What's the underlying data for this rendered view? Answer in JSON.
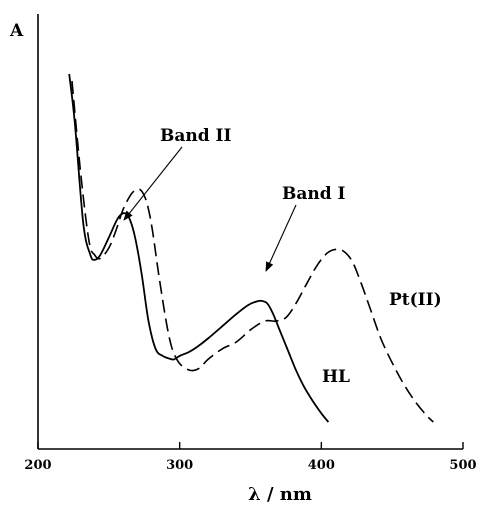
{
  "chart_data": {
    "type": "line",
    "ylabel": "A",
    "xlabel": "λ / nm",
    "xlim": [
      200,
      500
    ],
    "ylim": [
      0,
      1
    ],
    "x_ticks": [
      200,
      300,
      400,
      500
    ],
    "y_axis_numbered": false,
    "grid": false,
    "legend": "none (curves labeled directly)",
    "series": [
      {
        "name": "HL",
        "style": "solid",
        "x": [
          222,
          226,
          232,
          237,
          240,
          244,
          250,
          255,
          258,
          261,
          264,
          268,
          273,
          278,
          283,
          288,
          293,
          296,
          300,
          306,
          312,
          320,
          330,
          340,
          348,
          354,
          358,
          362,
          366,
          370,
          376,
          382,
          388,
          394,
          400,
          405
        ],
        "y": [
          1.0,
          0.86,
          0.57,
          0.48,
          0.466,
          0.48,
          0.53,
          0.575,
          0.594,
          0.6,
          0.59,
          0.54,
          0.43,
          0.29,
          0.21,
          0.19,
          0.182,
          0.18,
          0.19,
          0.2,
          0.215,
          0.24,
          0.275,
          0.31,
          0.335,
          0.346,
          0.348,
          0.34,
          0.31,
          0.27,
          0.21,
          0.15,
          0.1,
          0.06,
          0.025,
          0.0
        ]
      },
      {
        "name": "Pt(II)",
        "style": "dashed",
        "x": [
          224,
          230,
          236,
          240,
          244,
          250,
          255,
          260,
          265,
          268,
          272,
          276,
          280,
          285,
          290,
          294,
          298,
          302,
          308,
          314,
          320,
          330,
          340,
          350,
          360,
          368,
          375,
          382,
          390,
          397,
          404,
          410,
          416,
          422,
          428,
          435,
          442,
          450,
          458,
          466,
          474,
          479
        ],
        "y": [
          0.98,
          0.72,
          0.52,
          0.48,
          0.47,
          0.5,
          0.55,
          0.61,
          0.65,
          0.664,
          0.668,
          0.64,
          0.57,
          0.43,
          0.3,
          0.22,
          0.18,
          0.16,
          0.148,
          0.155,
          0.18,
          0.21,
          0.23,
          0.265,
          0.29,
          0.29,
          0.3,
          0.34,
          0.4,
          0.45,
          0.485,
          0.496,
          0.49,
          0.46,
          0.4,
          0.32,
          0.24,
          0.17,
          0.11,
          0.06,
          0.02,
          0.0
        ]
      }
    ],
    "annotations": [
      {
        "text": "Band II",
        "points_to_series": "HL",
        "x": 261,
        "y": 0.6
      },
      {
        "text": "Band I",
        "points_to_series": "HL",
        "x": 358,
        "y": 0.348
      }
    ],
    "curve_labels": [
      {
        "text": "HL",
        "series": "HL"
      },
      {
        "text": "Pt(II)",
        "series": "Pt(II)"
      }
    ]
  }
}
